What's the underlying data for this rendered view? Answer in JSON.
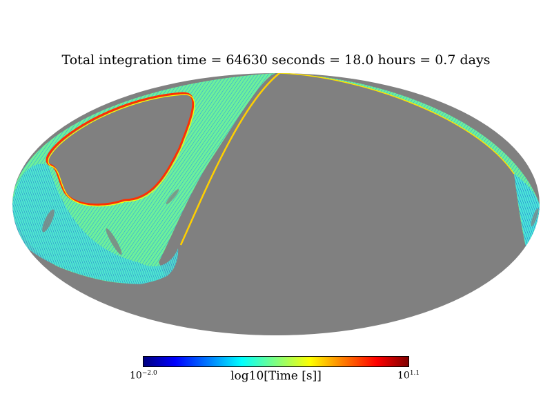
{
  "title": "Total integration time = 64630 seconds = 18.0 hours = 0.7 days",
  "colorbar": {
    "label": "log10[Time [s]]",
    "min_base": "10",
    "min_exp": "−2.0",
    "max_base": "10",
    "max_exp": "1.1",
    "colormap": "jet"
  },
  "colors": {
    "unobserved": "#808080",
    "background": "#ffffff"
  }
}
